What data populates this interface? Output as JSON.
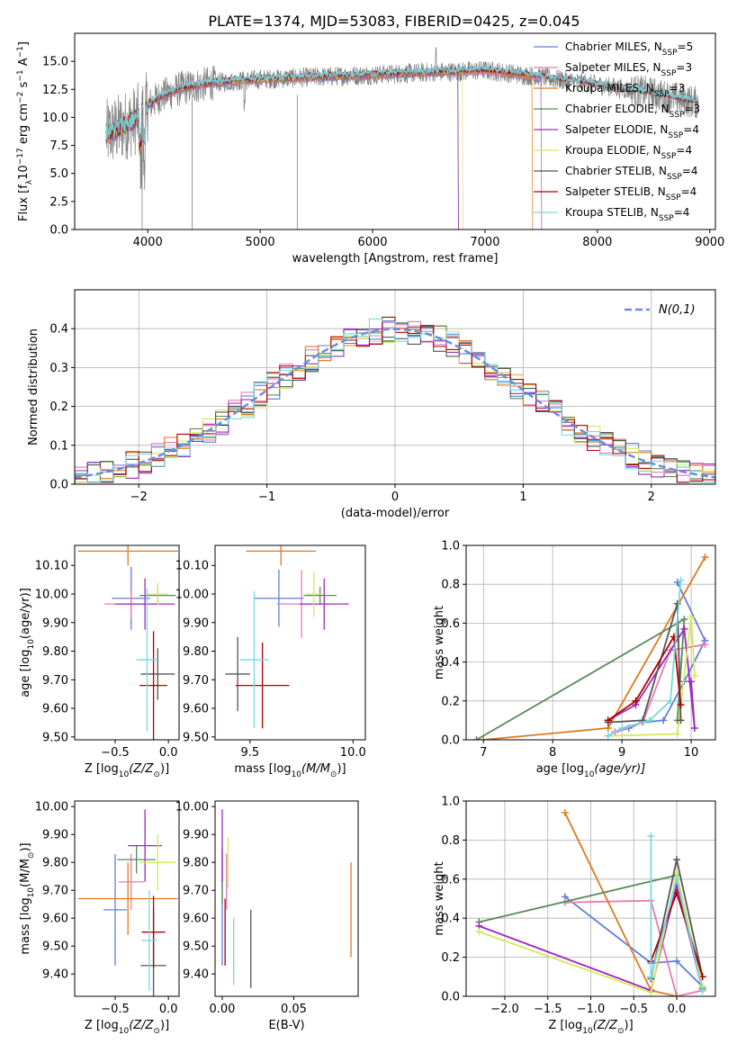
{
  "figure_title": "PLATE=1374, MJD=53083, FIBERID=0425, z=0.045",
  "legend_labels": [
    [
      "Chabrier MILES, N",
      "SSP",
      "=5"
    ],
    [
      "Salpeter MILES, N",
      "SSP",
      "=3"
    ],
    [
      "Kroupa MILES, N",
      "SSP",
      "=3"
    ],
    [
      "Chabrier ELODIE, N",
      "SSP",
      "=3"
    ],
    [
      "Salpeter ELODIE, N",
      "SSP",
      "=4"
    ],
    [
      "Kroupa ELODIE, N",
      "SSP",
      "=4"
    ],
    [
      "Chabrier STELIB, N",
      "SSP",
      "=4"
    ],
    [
      "Salpeter STELIB, N",
      "SSP",
      "=4"
    ],
    [
      "Kroupa STELIB, N",
      "SSP",
      "=4"
    ]
  ],
  "colors": [
    "#5f7fd8",
    "#e87ab3",
    "#e07a20",
    "#5a8a5a",
    "#a028c0",
    "#d6e85a",
    "#555555",
    "#b00000",
    "#78d8e0"
  ],
  "chart_data": [
    {
      "id": "spectrum",
      "type": "line",
      "xlabel": "wavelength [Angstrom, rest frame]",
      "ylabel_parts": [
        "Flux [f",
        "λ",
        "10",
        "−17",
        " erg cm",
        "−2",
        " s",
        "−1",
        " A",
        "−1",
        "]"
      ],
      "xlim": [
        3350,
        9050
      ],
      "ylim": [
        0,
        17.5
      ],
      "xticks": [
        4000,
        5000,
        6000,
        7000,
        8000,
        9000
      ],
      "yticks": [
        0.0,
        2.5,
        5.0,
        7.5,
        10.0,
        12.5,
        15.0
      ],
      "data_range": [
        3630,
        8900
      ],
      "model_end_wavelength": [
        7500,
        7500,
        7420,
        6760,
        6760,
        6800,
        8900,
        8900,
        8900
      ],
      "continuum": {
        "x": [
          3630,
          3700,
          3800,
          3900,
          4000,
          4100,
          4300,
          4600,
          5000,
          5500,
          6000,
          6500,
          6800,
          7000,
          7500,
          8000,
          8500,
          8900
        ],
        "y": [
          8.5,
          8.8,
          9.3,
          9.8,
          11.0,
          11.8,
          12.6,
          13.1,
          13.4,
          13.6,
          13.8,
          14.0,
          14.1,
          14.2,
          13.6,
          12.9,
          12.1,
          11.3
        ]
      }
    },
    {
      "id": "residuals",
      "type": "histogram",
      "xlabel": "(data-model)/error",
      "ylabel": "Normed distribution",
      "xlim": [
        -2.5,
        2.5
      ],
      "ylim": [
        0,
        0.5
      ],
      "xticks": [
        -2,
        -1,
        0,
        1,
        2
      ],
      "yticks": [
        0.0,
        0.1,
        0.2,
        0.3,
        0.4
      ],
      "bin_width": 0.1,
      "reference_curve": "normal(0,1)",
      "reference_label": "N(0,1)",
      "reference_color": "#6a8fd8"
    },
    {
      "id": "age-vs-z",
      "type": "scatter",
      "xlabel_parts": [
        "Z [log",
        "10",
        "(Z/Z",
        "⊙",
        ")]"
      ],
      "ylabel_parts": [
        "age  [log",
        "10",
        "(age/yr)]"
      ],
      "xlim": [
        -0.88,
        0.1
      ],
      "ylim": [
        9.49,
        10.17
      ],
      "xticks": [
        -0.5,
        0.0
      ],
      "yticks": [
        9.5,
        9.6,
        9.7,
        9.8,
        9.9,
        10.0,
        10.1
      ],
      "points": [
        {
          "x": -0.35,
          "y": 9.985,
          "xerr": 0.18,
          "yerr": 0.11
        },
        {
          "x": -0.35,
          "y": 9.965,
          "xerr": 0.25,
          "yerr": 0.05
        },
        {
          "x": -0.38,
          "y": 10.15,
          "xerr": 0.47,
          "yerr": 0.05
        },
        {
          "x": -0.1,
          "y": 9.995,
          "xerr": 0.17,
          "yerr": 0.03
        },
        {
          "x": -0.22,
          "y": 9.965,
          "xerr": 0.28,
          "yerr": 0.09
        },
        {
          "x": -0.1,
          "y": 10.0,
          "xerr": 0.1,
          "yerr": 0.04
        },
        {
          "x": -0.1,
          "y": 9.72,
          "xerr": 0.16,
          "yerr": 0.09
        },
        {
          "x": -0.14,
          "y": 9.68,
          "xerr": 0.13,
          "yerr": 0.19
        },
        {
          "x": -0.2,
          "y": 9.77,
          "xerr": 0.1,
          "yerr": 0.25
        }
      ]
    },
    {
      "id": "age-vs-mass",
      "type": "scatter",
      "xlabel_parts": [
        "mass [log",
        "10",
        "(M/M",
        "⊙",
        ")]"
      ],
      "ylabel_parts": [],
      "xlim": [
        9.33,
        10.06
      ],
      "ylim": [
        9.49,
        10.17
      ],
      "xticks": [
        9.5,
        10.0
      ],
      "yticks": [
        9.5,
        9.6,
        9.7,
        9.8,
        9.9,
        10.0,
        10.1
      ],
      "points": [
        {
          "x": 9.64,
          "y": 9.985,
          "xerr": 0.12,
          "yerr": 0.1
        },
        {
          "x": 9.75,
          "y": 9.965,
          "xerr": 0.12,
          "yerr": 0.12
        },
        {
          "x": 9.65,
          "y": 10.15,
          "xerr": 0.17,
          "yerr": 0.05
        },
        {
          "x": 9.84,
          "y": 9.995,
          "xerr": 0.08,
          "yerr": 0.03
        },
        {
          "x": 9.86,
          "y": 9.965,
          "xerr": 0.12,
          "yerr": 0.09
        },
        {
          "x": 9.81,
          "y": 10.0,
          "xerr": 0.04,
          "yerr": 0.08
        },
        {
          "x": 9.44,
          "y": 9.72,
          "xerr": 0.06,
          "yerr": 0.13
        },
        {
          "x": 9.56,
          "y": 9.68,
          "xerr": 0.13,
          "yerr": 0.15
        },
        {
          "x": 9.52,
          "y": 9.77,
          "xerr": 0.07,
          "yerr": 0.24
        }
      ]
    },
    {
      "id": "mass-weight-vs-age",
      "type": "line",
      "xlabel_parts": [
        "age  [log",
        "10",
        "(age/yr)]"
      ],
      "ylabel": "mass weight",
      "xlim": [
        6.75,
        10.35
      ],
      "ylim": [
        0,
        1.0
      ],
      "xticks": [
        7,
        8,
        9,
        10
      ],
      "yticks": [
        0.0,
        0.2,
        0.4,
        0.6,
        0.8,
        1.0
      ],
      "series": [
        {
          "x": [
            8.9,
            9.1,
            9.3,
            9.6,
            9.9,
            10.2,
            9.8
          ],
          "y": [
            0.04,
            0.06,
            0.09,
            0.1,
            0.3,
            0.51,
            0.81
          ]
        },
        {
          "x": [
            8.9,
            9.3,
            9.7,
            10.2
          ],
          "y": [
            0.04,
            0.09,
            0.46,
            0.49
          ]
        },
        {
          "x": [
            7.0,
            8.8,
            10.2
          ],
          "y": [
            0.0,
            0.06,
            0.94
          ]
        },
        {
          "x": [
            6.9,
            9.9,
            9.8
          ],
          "y": [
            0.0,
            0.62,
            0.1
          ]
        },
        {
          "x": [
            8.8,
            9.2,
            9.9,
            10.05,
            10.0
          ],
          "y": [
            0.1,
            0.18,
            0.57,
            0.06,
            0.3
          ]
        },
        {
          "x": [
            8.8,
            9.8,
            10.0,
            10.05
          ],
          "y": [
            0.02,
            0.03,
            0.63,
            0.33
          ]
        },
        {
          "x": [
            8.8,
            9.3,
            9.8,
            9.85
          ],
          "y": [
            0.09,
            0.1,
            0.7,
            0.1
          ]
        },
        {
          "x": [
            8.8,
            9.2,
            9.75,
            9.85
          ],
          "y": [
            0.1,
            0.2,
            0.53,
            0.18
          ]
        },
        {
          "x": [
            8.8,
            9.0,
            9.4,
            9.7,
            9.85
          ],
          "y": [
            0.02,
            0.06,
            0.1,
            0.2,
            0.82
          ]
        }
      ]
    },
    {
      "id": "mass-vs-z",
      "type": "scatter",
      "xlabel_parts": [
        "Z [log",
        "10",
        "(Z/Z",
        "⊙",
        ")]"
      ],
      "ylabel_parts": [
        "mass [log",
        "10",
        "(M/M",
        "⊙",
        ")]"
      ],
      "xlim": [
        -0.88,
        0.1
      ],
      "ylim": [
        9.32,
        10.02
      ],
      "xticks": [
        -0.5,
        0.0
      ],
      "yticks": [
        9.4,
        9.5,
        9.6,
        9.7,
        9.8,
        9.9,
        10.0
      ],
      "points": [
        {
          "x": -0.5,
          "y": 9.63,
          "xerr": 0.11,
          "yerr": 0.2
        },
        {
          "x": -0.35,
          "y": 9.73,
          "xerr": 0.12,
          "yerr": 0.1
        },
        {
          "x": -0.38,
          "y": 9.67,
          "xerr": 0.47,
          "yerr": 0.13
        },
        {
          "x": -0.3,
          "y": 9.81,
          "xerr": 0.18,
          "yerr": 0.05
        },
        {
          "x": -0.22,
          "y": 9.86,
          "xerr": 0.16,
          "yerr": 0.13
        },
        {
          "x": -0.1,
          "y": 9.8,
          "xerr": 0.17,
          "yerr": 0.1
        },
        {
          "x": -0.14,
          "y": 9.43,
          "xerr": 0.12,
          "yerr": 0.2
        },
        {
          "x": -0.14,
          "y": 9.55,
          "xerr": 0.11,
          "yerr": 0.13
        },
        {
          "x": -0.18,
          "y": 9.52,
          "xerr": 0.07,
          "yerr": 0.18
        }
      ]
    },
    {
      "id": "mass-vs-ebv",
      "type": "scatter",
      "xlabel": "E(B-V)",
      "xlim": [
        -0.005,
        0.095
      ],
      "ylim": [
        9.32,
        10.02
      ],
      "xticks": [
        0.0,
        0.05
      ],
      "yticks": [
        9.4,
        9.5,
        9.6,
        9.7,
        9.8,
        9.9,
        10.0
      ],
      "points": [
        {
          "x": 0.0,
          "y": 9.63,
          "xerr": 0.0,
          "yerr": 0.2
        },
        {
          "x": 0.003,
          "y": 9.73,
          "xerr": 0.0,
          "yerr": 0.1
        },
        {
          "x": 0.09,
          "y": 9.63,
          "xerr": 0.0,
          "yerr": 0.17
        },
        {
          "x": 0.0,
          "y": 9.75,
          "xerr": 0.0,
          "yerr": 0.1
        },
        {
          "x": 0.0,
          "y": 9.86,
          "xerr": 0.0,
          "yerr": 0.13
        },
        {
          "x": 0.004,
          "y": 9.8,
          "xerr": 0.0,
          "yerr": 0.09
        },
        {
          "x": 0.02,
          "y": 9.49,
          "xerr": 0.0,
          "yerr": 0.14
        },
        {
          "x": 0.002,
          "y": 9.55,
          "xerr": 0.0,
          "yerr": 0.12
        },
        {
          "x": 0.008,
          "y": 9.48,
          "xerr": 0.0,
          "yerr": 0.12
        }
      ]
    },
    {
      "id": "mass-weight-vs-z",
      "type": "line",
      "xlabel_parts": [
        "Z [log",
        "10",
        "(Z/Z",
        "⊙",
        ")]"
      ],
      "ylabel": "mass weight",
      "xlim": [
        -2.45,
        0.45
      ],
      "ylim": [
        0,
        1.0
      ],
      "xticks": [
        -2.0,
        -1.5,
        -1.0,
        -0.5,
        0.0
      ],
      "yticks": [
        0.0,
        0.2,
        0.4,
        0.6,
        0.8,
        1.0
      ],
      "series": [
        {
          "x": [
            -1.3,
            -0.3,
            0.0,
            0.3
          ],
          "y": [
            0.51,
            0.17,
            0.18,
            0.05
          ]
        },
        {
          "x": [
            -1.3,
            -0.3,
            0.0,
            0.3
          ],
          "y": [
            0.48,
            0.49,
            0.0,
            0.03
          ]
        },
        {
          "x": [
            -1.3,
            -0.3,
            0.0
          ],
          "y": [
            0.94,
            0.03,
            0.0
          ]
        },
        {
          "x": [
            -2.3,
            0.0,
            0.3
          ],
          "y": [
            0.38,
            0.62,
            0.04
          ]
        },
        {
          "x": [
            -2.3,
            -0.3,
            0.0,
            0.3
          ],
          "y": [
            0.36,
            0.03,
            0.57,
            0.03
          ]
        },
        {
          "x": [
            -2.3,
            -0.3,
            0.0,
            0.3
          ],
          "y": [
            0.33,
            0.02,
            0.63,
            0.05
          ]
        },
        {
          "x": [
            -0.3,
            0.0,
            0.3
          ],
          "y": [
            0.09,
            0.7,
            0.1
          ]
        },
        {
          "x": [
            -0.3,
            0.0,
            0.3
          ],
          "y": [
            0.18,
            0.53,
            0.1
          ]
        },
        {
          "x": [
            -0.3,
            -0.3,
            0.0,
            0.3
          ],
          "y": [
            0.82,
            0.1,
            0.6,
            0.03
          ]
        }
      ]
    }
  ]
}
